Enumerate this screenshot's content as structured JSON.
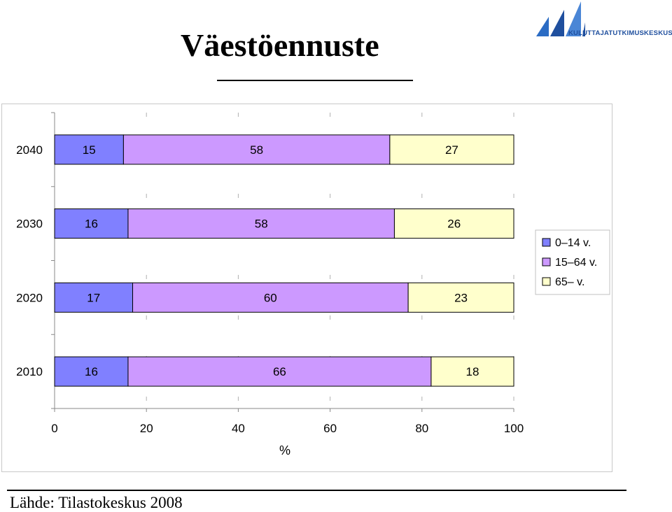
{
  "header": {
    "title": "Väestöennuste",
    "logo_text": "KULUTTAJATUTKIMUSKESKUS"
  },
  "footer": {
    "source": "Lähde: Tilastokeskus 2008"
  },
  "colors": {
    "series_0_14": "#8080ff",
    "series_15_64": "#cc99ff",
    "series_65": "#ffffcc",
    "logo_blue": "#1f4f9e"
  },
  "chart_data": {
    "type": "bar",
    "orientation": "horizontal",
    "stacked": true,
    "categories": [
      "2010",
      "2020",
      "2030",
      "2040"
    ],
    "series": [
      {
        "name": "0–14 v.",
        "values": [
          16,
          17,
          16,
          15
        ]
      },
      {
        "name": "15–64 v.",
        "values": [
          66,
          60,
          58,
          58
        ]
      },
      {
        "name": "65– v.",
        "values": [
          18,
          23,
          26,
          27
        ]
      }
    ],
    "xlim": [
      0,
      100
    ],
    "xticks": [
      0,
      20,
      40,
      60,
      80,
      100
    ],
    "xlabel": "%",
    "ylabel": "",
    "grid": "vertical-dashed",
    "legend": "right",
    "data_labels": true
  }
}
